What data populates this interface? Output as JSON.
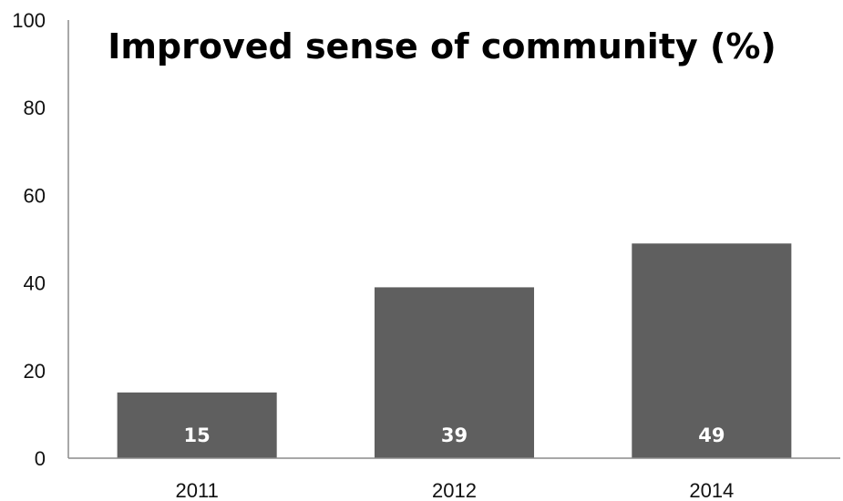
{
  "chart_data": {
    "type": "bar",
    "title": "Improved sense of community (%)",
    "xlabel": "",
    "ylabel": "",
    "categories": [
      "2011",
      "2012",
      "2014"
    ],
    "values": [
      15,
      39,
      49
    ],
    "data_labels": [
      "15",
      "39",
      "49"
    ],
    "ylim": [
      0,
      100
    ],
    "yticks": [
      "0",
      "20",
      "40",
      "60",
      "80",
      "100"
    ],
    "ytick_values": [
      0,
      20,
      40,
      60,
      80,
      100
    ],
    "grid": false,
    "legend": "none",
    "bar_color": "#5f5f5f",
    "axis_color": "#8c8c8c",
    "data_label_color": "#ffffff"
  }
}
